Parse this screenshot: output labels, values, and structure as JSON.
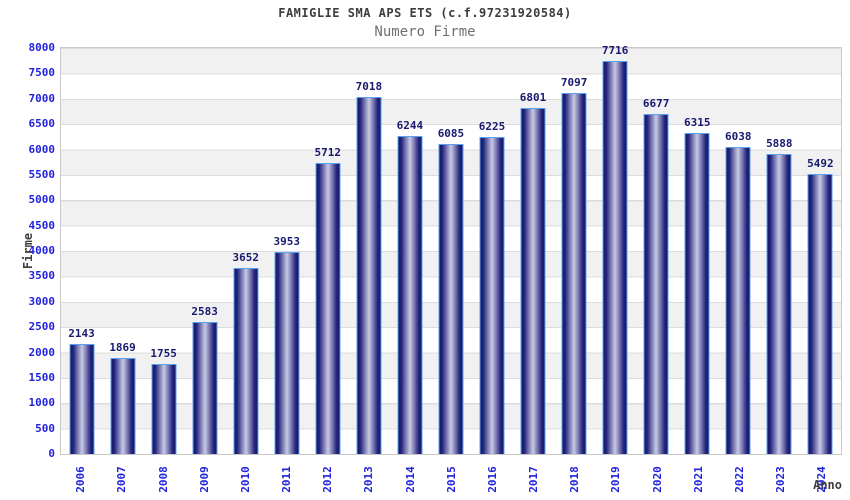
{
  "chart": {
    "title": "FAMIGLIE SMA APS ETS (c.f.97231920584)",
    "subtitle": "Numero Firme",
    "y_axis_title": "Firme",
    "x_axis_title": "Anno"
  },
  "chart_data": {
    "type": "bar",
    "title": "FAMIGLIE SMA APS ETS (c.f.97231920584)",
    "subtitle": "Numero Firme",
    "xlabel": "Anno",
    "ylabel": "Firme",
    "categories": [
      "2006",
      "2007",
      "2008",
      "2009",
      "2010",
      "2011",
      "2012",
      "2013",
      "2014",
      "2015",
      "2016",
      "2017",
      "2018",
      "2019",
      "2020",
      "2021",
      "2022",
      "2023",
      "2024"
    ],
    "values": [
      2143,
      1869,
      1755,
      2583,
      3652,
      3953,
      5712,
      7018,
      6244,
      6085,
      6225,
      6801,
      7097,
      7716,
      6677,
      6315,
      6038,
      5888,
      5492
    ],
    "ylim": [
      0,
      8000
    ],
    "yticks": [
      0,
      500,
      1000,
      1500,
      2000,
      2500,
      3000,
      3500,
      4000,
      4500,
      5000,
      5500,
      6000,
      6500,
      7000,
      7500,
      8000
    ],
    "grid": "horizontal-bands-alternating",
    "legend": "none",
    "bar_value_labels": true,
    "x_tick_rotation": "vertical",
    "colors": {
      "tick_label": "#2222dd",
      "value_label": "#191970",
      "bar_dark": "#191968",
      "bar_light": "#c9c9e4",
      "bar_border": "#57a2f0",
      "band_gray": "#f1f1f1",
      "grid_line": "#dcdcdc",
      "plot_border": "#c9c9c9",
      "title": "#3d3d3d",
      "subtitle": "#707070"
    }
  }
}
